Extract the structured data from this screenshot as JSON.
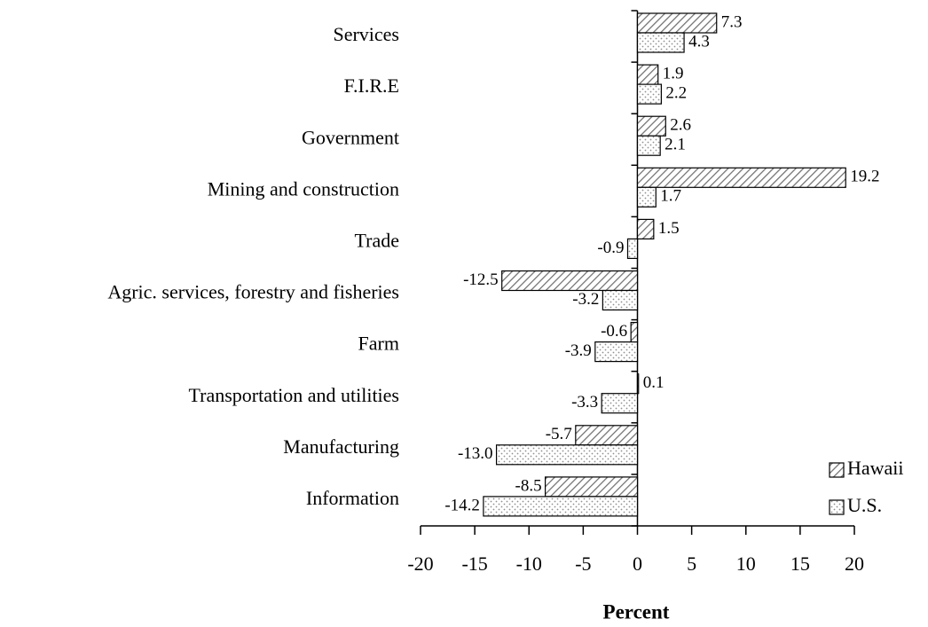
{
  "chart_data": {
    "type": "hbar",
    "xlabel": "Percent",
    "categories": [
      "Services",
      "F.I.R.E",
      "Government",
      "Mining and construction",
      "Trade",
      "Agric. services, forestry and fisheries",
      "Farm",
      "Transportation and utilities",
      "Manufacturing",
      "Information"
    ],
    "series": [
      {
        "name": "Hawaii",
        "color": "#808080",
        "pattern": "hatch",
        "values": [
          7.3,
          1.9,
          2.6,
          19.2,
          1.5,
          -12.5,
          -0.6,
          0.1,
          -5.7,
          -8.5
        ],
        "value_labels": [
          "7.3",
          "1.9",
          "2.6",
          "19.2",
          "1.5",
          "-12.5",
          "-0.6",
          "0.1",
          "-5.7",
          "-8.5"
        ]
      },
      {
        "name": "U.S.",
        "color": "#a0a0a0",
        "pattern": "dots",
        "values": [
          4.3,
          2.2,
          2.1,
          1.7,
          -0.9,
          -3.2,
          -3.9,
          -3.3,
          -13,
          -14.2
        ],
        "value_labels": [
          "4.3",
          "2.2",
          "2.1",
          "1.7",
          "-0.9",
          "-3.2",
          "-3.9",
          "-3.3",
          "-13.0",
          "-14.2"
        ]
      }
    ],
    "xlim": [
      -20,
      20
    ],
    "xticks": [
      -20,
      -15,
      -10,
      -5,
      0,
      5,
      10,
      15,
      20
    ],
    "grid": false,
    "legend": "lower right"
  }
}
